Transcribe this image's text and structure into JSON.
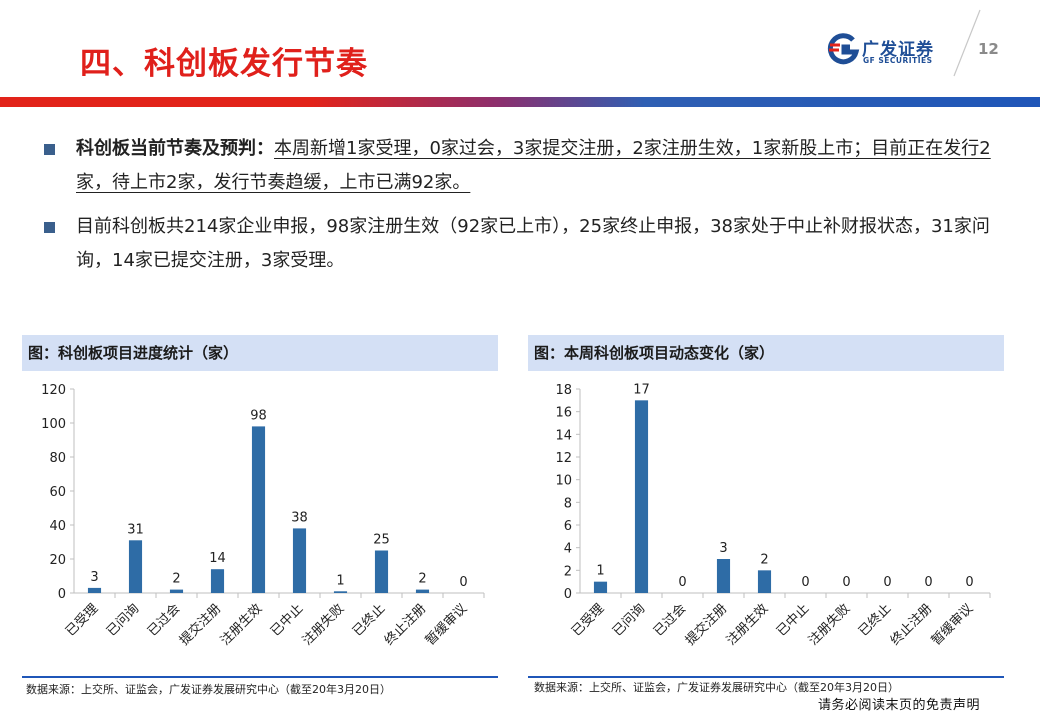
{
  "header": {
    "title": "四、科创板发行节奏",
    "logo_cn": "广发证券",
    "logo_en": "GF SECURITIES",
    "page_number": "12",
    "colors": {
      "title": "#e0201b",
      "brand_blue": "#1f4e96",
      "band_red": "#e2231a",
      "band_blue": "#1f56b8"
    }
  },
  "bullets": [
    {
      "lead": "科创板当前节奏及预判：",
      "text": "本周新增1家受理，0家过会，3家提交注册，2家注册生效，1家新股上市；目前正在发行2家，待上市2家，发行节奏趋缓，上市已满92家。"
    },
    {
      "lead": "",
      "text": "目前科创板共214家企业申报，98家注册生效（92家已上市），25家终止申报，38家处于中止补财报状态，31家问询，14家已提交注册，3家受理。"
    }
  ],
  "panels": [
    {
      "title": "图：科创板项目进度统计（家）",
      "source": "数据来源：上交所、证监会，广发证券发展研究中心（截至20年3月20日）"
    },
    {
      "title": "图：本周科创板项目动态变化（家）",
      "source": "数据来源：上交所、证监会，广发证券发展研究中心（截至20年3月20日）"
    }
  ],
  "disclaimer": "请务必阅读末页的免责声明",
  "chart_data": [
    {
      "type": "bar",
      "title": "图：科创板项目进度统计（家）",
      "categories": [
        "已受理",
        "已问询",
        "已过会",
        "提交注册",
        "注册生效",
        "已中止",
        "注册失败",
        "已终止",
        "终止注册",
        "暂缓审议"
      ],
      "values": [
        3,
        31,
        2,
        14,
        98,
        38,
        1,
        25,
        2,
        0
      ],
      "ylim": [
        0,
        120
      ],
      "yticks": [
        0,
        20,
        40,
        60,
        80,
        100,
        120
      ],
      "color": "#2e6ca6",
      "grid": false,
      "data_labels": true
    },
    {
      "type": "bar",
      "title": "图：本周科创板项目动态变化（家）",
      "categories": [
        "已受理",
        "已问询",
        "已过会",
        "提交注册",
        "注册生效",
        "已中止",
        "注册失败",
        "已终止",
        "终止注册",
        "暂缓审议"
      ],
      "values": [
        1,
        17,
        0,
        3,
        2,
        0,
        0,
        0,
        0,
        0
      ],
      "ylim": [
        0,
        18
      ],
      "yticks": [
        0,
        2,
        4,
        6,
        8,
        10,
        12,
        14,
        16,
        18
      ],
      "color": "#2e6ca6",
      "grid": false,
      "data_labels": true
    }
  ]
}
